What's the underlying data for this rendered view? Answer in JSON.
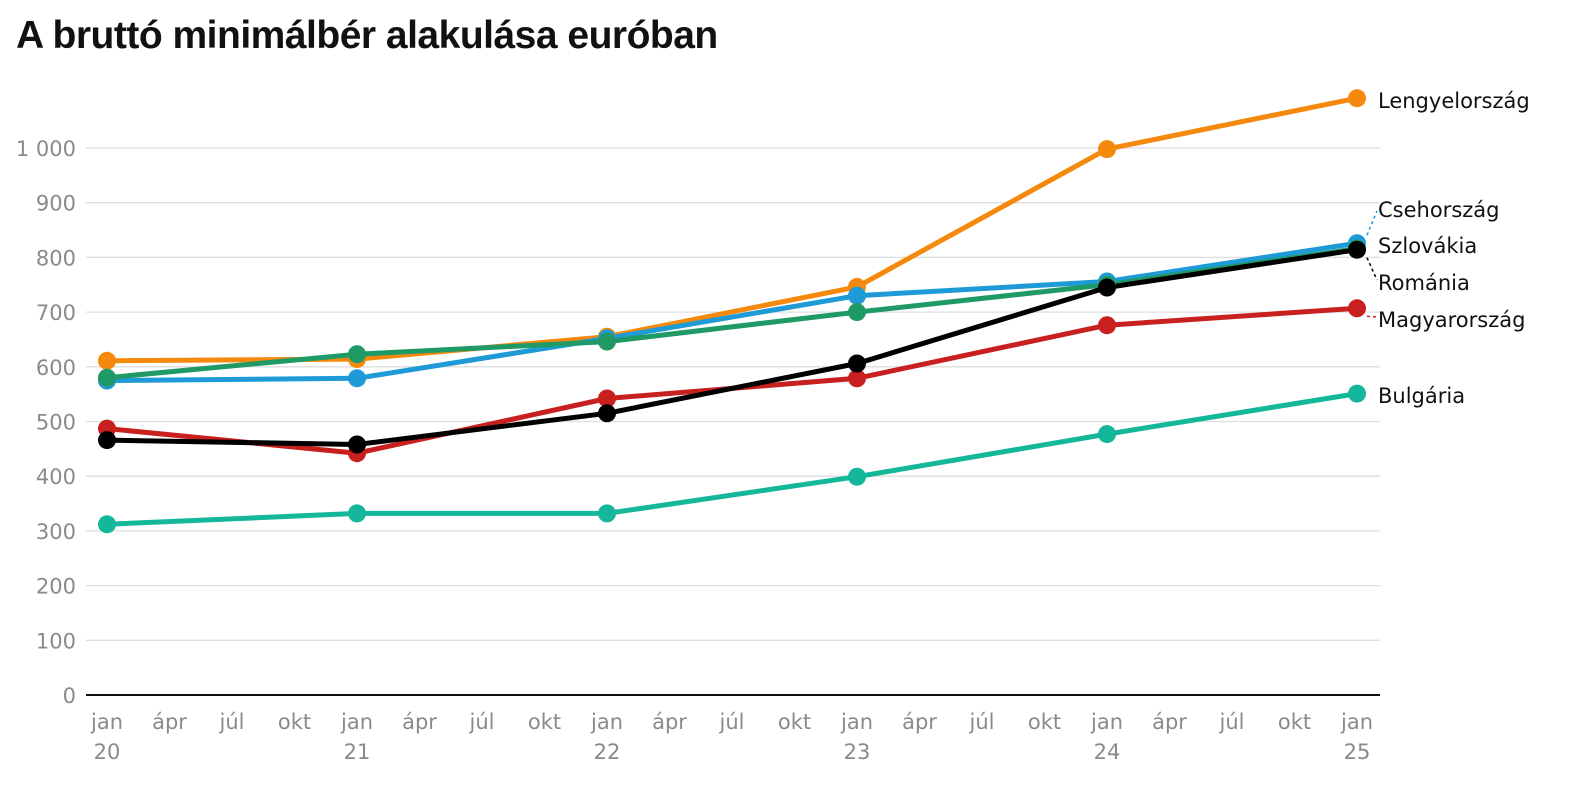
{
  "chart_data": {
    "type": "line",
    "title": "A bruttó minimálbér alakulása euróban",
    "xlabel": "",
    "ylabel": "",
    "ylim": [
      0,
      1000
    ],
    "y_ticks": [
      "0",
      "100",
      "200",
      "300",
      "400",
      "500",
      "600",
      "700",
      "800",
      "900",
      "1 000"
    ],
    "x_tick_labels": [
      [
        "jan",
        "20"
      ],
      [
        "ápr",
        ""
      ],
      [
        "júl",
        ""
      ],
      [
        "okt",
        ""
      ],
      [
        "jan",
        "21"
      ],
      [
        "ápr",
        ""
      ],
      [
        "júl",
        ""
      ],
      [
        "okt",
        ""
      ],
      [
        "jan",
        "22"
      ],
      [
        "ápr",
        ""
      ],
      [
        "júl",
        ""
      ],
      [
        "okt",
        ""
      ],
      [
        "jan",
        "23"
      ],
      [
        "ápr",
        ""
      ],
      [
        "júl",
        ""
      ],
      [
        "okt",
        ""
      ],
      [
        "jan",
        "24"
      ],
      [
        "ápr",
        ""
      ],
      [
        "júl",
        ""
      ],
      [
        "okt",
        ""
      ],
      [
        "jan",
        "25"
      ]
    ],
    "x": [
      "2020-01",
      "2021-01",
      "2022-01",
      "2023-01",
      "2024-01",
      "2025-01"
    ],
    "grid": true,
    "legend": "direct labels at right end of lines",
    "series": [
      {
        "name": "Lengyelország",
        "color": "#f5890d",
        "values": [
          611,
          614,
          655,
          746,
          998,
          1091
        ]
      },
      {
        "name": "Csehország",
        "color": "#1e9ad6",
        "values": [
          575,
          579,
          652,
          730,
          756,
          826
        ]
      },
      {
        "name": "Szlovákia",
        "color": "#1f9a66",
        "values": [
          580,
          623,
          646,
          700,
          750,
          816
        ]
      },
      {
        "name": "Magyarország",
        "color": "#c8201f",
        "values": [
          487,
          442,
          542,
          579,
          676,
          707
        ]
      },
      {
        "name": "Bulgária",
        "color": "#14b79a",
        "values": [
          312,
          332,
          332,
          399,
          477,
          551
        ]
      },
      {
        "name": "Románia",
        "color": "#000000",
        "values": [
          466,
          458,
          515,
          606,
          745,
          814
        ]
      }
    ]
  }
}
